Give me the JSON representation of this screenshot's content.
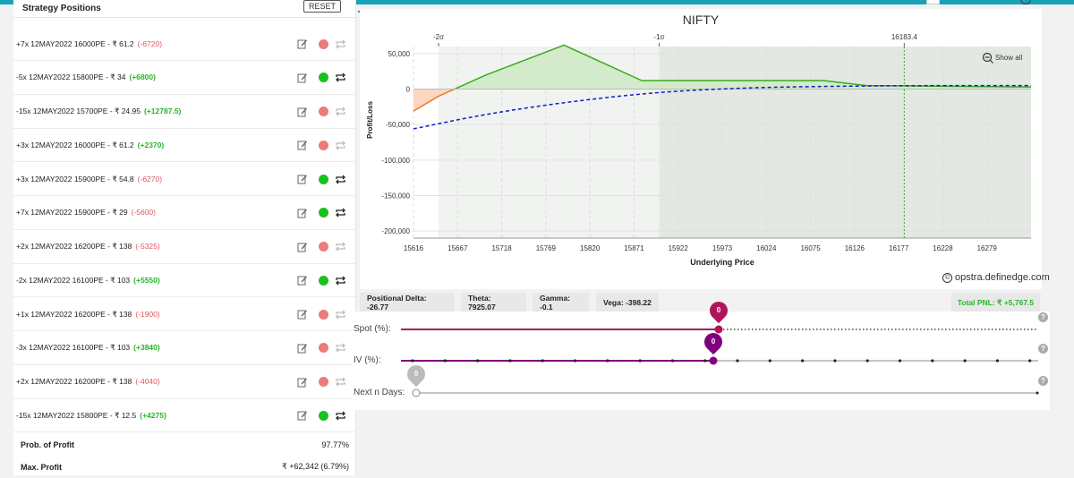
{
  "left_panel": {
    "title": "Strategy Positions",
    "reset_label": "RESET",
    "positions": [
      {
        "text": "+7x  12MAY2022  16000PE - ₹ 61.2",
        "pnl": "(-6720)",
        "status": "red"
      },
      {
        "text": "-5x  12MAY2022  15800PE - ₹ 34",
        "pnl": "(+6800)",
        "status": "green"
      },
      {
        "text": "-15x  12MAY2022  15700PE - ₹ 24.95",
        "pnl": "(+12787.5)",
        "status": "red"
      },
      {
        "text": "+3x  12MAY2022  16000PE - ₹ 61.2",
        "pnl": "(+2370)",
        "status": "red"
      },
      {
        "text": "+3x  12MAY2022  15900PE - ₹ 54.8",
        "pnl": "(-6270)",
        "status": "green"
      },
      {
        "text": "+7x  12MAY2022  15900PE - ₹ 29",
        "pnl": "(-5600)",
        "status": "green"
      },
      {
        "text": "+2x  12MAY2022  16200PE - ₹ 138",
        "pnl": "(-5325)",
        "status": "red"
      },
      {
        "text": "-2x  12MAY2022  16100PE - ₹ 103",
        "pnl": "(+5550)",
        "status": "green"
      },
      {
        "text": "+1x  12MAY2022  16200PE - ₹ 138",
        "pnl": "(-1900)",
        "status": "red"
      },
      {
        "text": "-3x  12MAY2022  16100PE - ₹ 103",
        "pnl": "(+3840)",
        "status": "red"
      },
      {
        "text": "+2x  12MAY2022  16200PE - ₹ 138",
        "pnl": "(-4040)",
        "status": "red"
      },
      {
        "text": "-15x  12MAY2022  15800PE - ₹ 12.5",
        "pnl": "(+4275)",
        "status": "green"
      }
    ],
    "prob_of_profit_label": "Prob. of Profit",
    "prob_of_profit_value": "97.77%",
    "max_profit_label": "Max. Profit",
    "max_profit_value": "₹ +62,342 (6.79%)"
  },
  "chart_data": {
    "type": "area",
    "title": "NIFTY",
    "xlabel": "Underlying Price",
    "ylabel": "Profit/Loss",
    "x_ticks": [
      "15616",
      "15667",
      "15718",
      "15769",
      "15820",
      "15871",
      "15922",
      "15973",
      "16024",
      "16075",
      "16126",
      "16177",
      "16228",
      "16279"
    ],
    "y_ticks": [
      "50,000",
      "0",
      "-50,000",
      "-100,000",
      "-150,000",
      "-200,000"
    ],
    "xlim": [
      15616,
      16330
    ],
    "ylim": [
      -210000,
      60000
    ],
    "top_markers": [
      {
        "label": "-2σ",
        "x": 15645
      },
      {
        "label": "-1σ",
        "x": 15900
      },
      {
        "label": "16183.4",
        "x": 16183.4
      }
    ],
    "expiry_payoff": {
      "x": [
        15616,
        15645,
        15700,
        15790,
        15880,
        16090,
        16140,
        16330
      ],
      "y": [
        -31000,
        -10000,
        20000,
        62000,
        12000,
        12000,
        5000,
        3000
      ]
    },
    "today_payoff": {
      "x": [
        15616,
        15700,
        15800,
        15900,
        16000,
        16100,
        16200,
        16330
      ],
      "y": [
        -56000,
        -35000,
        -17000,
        -4000,
        2000,
        4000,
        5000,
        5000
      ]
    },
    "show_all_label": "Show all",
    "colors": {
      "profit": "#d4ebcb",
      "loss": "#fbd7c0",
      "profit_line": "#3aaa1c",
      "loss_line": "#e87722",
      "today_line": "#0a1fc7"
    }
  },
  "watermark": "opstra.definedge.com",
  "greeks": {
    "delta": "Positional Delta: -26.77",
    "theta": "Theta: 7925.07",
    "gamma": "Gamma: -0.1",
    "vega": "Vega: -398.22",
    "total_pnl": "Total PNL: ₹ +5,767.5"
  },
  "sliders": {
    "spot_label": "Spot (%):",
    "spot_value": "0",
    "iv_label": "IV (%):",
    "iv_value": "0",
    "days_label": "Next n Days:",
    "days_value": "0"
  }
}
